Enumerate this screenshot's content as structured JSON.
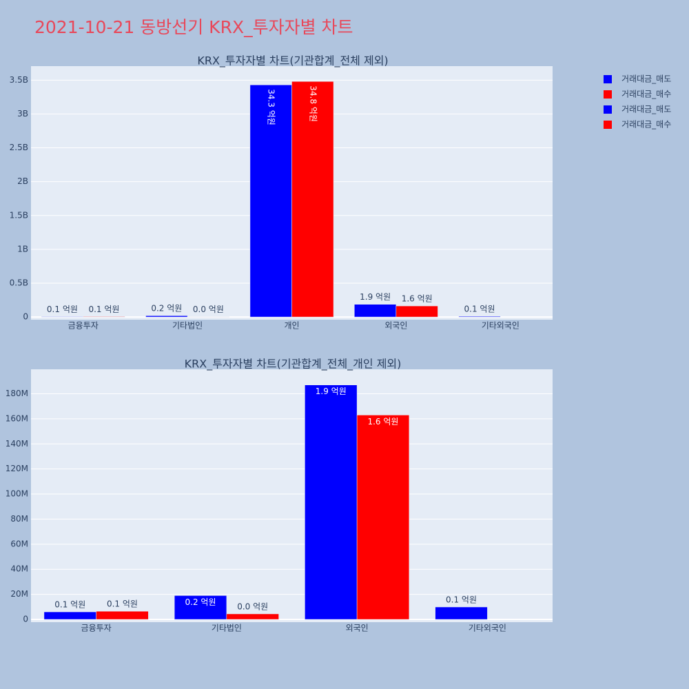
{
  "title": "2021-10-21 동방선기 KRX_투자자별 차트",
  "chart_data": [
    {
      "type": "bar",
      "title": "KRX_투자자별 차트(기관합계_전체 제외)",
      "categories": [
        "금융투자",
        "기타법인",
        "개인",
        "외국인",
        "기타외국인"
      ],
      "series": [
        {
          "name": "거래대금_매도",
          "color": "#0000ff",
          "values": [
            6000000,
            19000000,
            3430000000,
            187000000,
            9900000
          ],
          "value_labels": [
            "0.1 억원",
            "0.2 억원",
            "34.3 억원",
            "1.9 억원",
            "0.1 억원"
          ]
        },
        {
          "name": "거래대금_매수",
          "color": "#ff0000",
          "values": [
            6500000,
            4400000,
            3480000000,
            163000000,
            null
          ],
          "value_labels": [
            "0.1 억원",
            "0.0 억원",
            "34.8 억원",
            "1.6 억원",
            null
          ]
        }
      ],
      "ylim": [
        -40000000,
        3707000000
      ],
      "yticks": [
        0,
        {
          "value": 500000000,
          "label": "0.5B"
        },
        {
          "value": 1000000000,
          "label": "1B"
        },
        {
          "value": 1500000000,
          "label": "1.5B"
        },
        {
          "value": 2000000000,
          "label": "2B"
        },
        {
          "value": 2500000000,
          "label": "2.5B"
        },
        {
          "value": 3000000000,
          "label": "3B"
        },
        {
          "value": 3500000000,
          "label": "3.5B"
        }
      ],
      "grid": true
    },
    {
      "type": "bar",
      "title": "KRX_투자자별 차트(기관합계_전체_개인 제외)",
      "categories": [
        "금융투자",
        "기타법인",
        "외국인",
        "기타외국인"
      ],
      "series": [
        {
          "name": "거래대금_매도",
          "color": "#0000ff",
          "values": [
            6000000,
            19000000,
            187000000,
            9900000
          ],
          "value_labels": [
            "0.1 억원",
            "0.2 억원",
            "1.9 억원",
            "0.1 억원"
          ]
        },
        {
          "name": "거래대금_매수",
          "color": "#ff0000",
          "values": [
            6500000,
            4400000,
            163000000,
            null
          ],
          "value_labels": [
            "0.1 억원",
            "0.0 억원",
            "1.6 억원",
            null
          ]
        }
      ],
      "ylim": [
        -2200000,
        199500000
      ],
      "yticks": [
        0,
        {
          "value": 20000000,
          "label": "20M"
        },
        {
          "value": 40000000,
          "label": "40M"
        },
        {
          "value": 60000000,
          "label": "60M"
        },
        {
          "value": 80000000,
          "label": "80M"
        },
        {
          "value": 100000000,
          "label": "100M"
        },
        {
          "value": 120000000,
          "label": "120M"
        },
        {
          "value": 140000000,
          "label": "140M"
        },
        {
          "value": 160000000,
          "label": "160M"
        },
        {
          "value": 180000000,
          "label": "180M"
        }
      ],
      "grid": true
    }
  ]
}
